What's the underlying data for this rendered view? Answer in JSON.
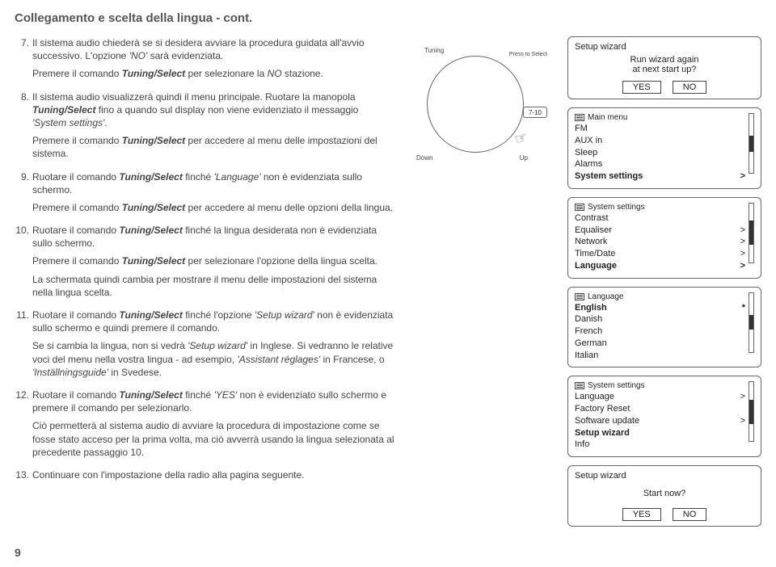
{
  "page": {
    "heading": "Collegamento e scelta della lingua - cont.",
    "number": "9"
  },
  "steps": [
    {
      "n": "7.",
      "paras": [
        "Il sistema audio chiederà se si desidera avviare la procedura guidata all'avvio successivo. L'opzione <em>'NO'</em> sarà evidenziata.",
        "Premere il comando <bi>Tuning/Select</bi> per selezionare la <em>NO</em> stazione."
      ]
    },
    {
      "n": "8.",
      "paras": [
        "Il sistema audio visualizzerà quindi il menu principale. Ruotare la manopola <bi>Tuning/Select</bi> fino a quando sul display non viene evidenziato il messaggio <em>'System settings'</em>.",
        "Premere il comando <bi>Tuning/Select</bi> per accedere al menu delle impostazioni del sistema."
      ]
    },
    {
      "n": "9.",
      "paras": [
        "Ruotare il comando <bi>Tuning/Select</bi> finché <em>'Language'</em> non è evidenziata sullo schermo.",
        "Premere il comando <bi>Tuning/Select</bi> per accedere al menu delle opzioni della lingua."
      ]
    },
    {
      "n": "10.",
      "paras": [
        "Ruotare il comando <bi>Tuning/Select</bi> finché la lingua desiderata non è evidenziata sullo schermo.",
        "Premere il comando <bi>Tuning/Select</bi> per selezionare l'opzione della lingua scelta.",
        "La schermata quindi cambia per mostrare il menu delle impostazioni del sistema nella lingua scelta."
      ]
    },
    {
      "n": "11.",
      "paras": [
        "Ruotare il comando <bi>Tuning/Select</bi> finché l'opzione <em>'Setup wizard'</em> non è evidenziata sullo schermo e quindi premere il comando.",
        "Se si cambia la lingua, non si vedrà <em>'Setup wizard'</em> in Inglese. Si vedranno le relative voci del menu nella vostra lingua - ad esempio, <em>'Assistant réglages'</em> in Francese, o <em>'Inställningsguide'</em> in Svedese."
      ]
    },
    {
      "n": "12.",
      "paras": [
        "Ruotare il comando <bi>Tuning/Select</bi> finché <em>'YES'</em> non è evidenziato sullo schermo e premere il comando per selezionarlo.",
        "Ciò permetterà al sistema audio di avviare la procedura di impostazione come se fosse stato acceso per la prima volta, ma ciò avverrà usando la lingua selezionata al precedente passaggio 10."
      ]
    },
    {
      "n": "13.",
      "paras": [
        "Continuare con l'impostazione della radio alla pagina seguente."
      ]
    }
  ],
  "dial": {
    "tuning": "Tuning",
    "press": "Press to\nSelect",
    "down": "Down",
    "up": "Up",
    "range": "7-10"
  },
  "screens": {
    "wizard1": {
      "title": "Setup wizard",
      "line1": "Run wizard again",
      "line2": "at next start up?",
      "yes": "YES",
      "no": "NO"
    },
    "mainmenu": {
      "header": "Main menu",
      "items": [
        "FM",
        "AUX in",
        "Sleep",
        "Alarms",
        "System settings"
      ],
      "selIndex": 4,
      "scrollThumbTop": 40,
      "scrollThumbHeight": 20
    },
    "syssettings1": {
      "header": "System settings",
      "items": [
        "Contrast",
        "Equaliser",
        "Network",
        "Time/Date",
        "Language"
      ],
      "chev": [
        false,
        true,
        true,
        true,
        true
      ],
      "selIndex": 4,
      "scrollThumbTop": 10,
      "scrollThumbHeight": 30
    },
    "language": {
      "header": "Language",
      "items": [
        "English",
        "Danish",
        "French",
        "German",
        "Italian"
      ],
      "star": [
        true,
        false,
        false,
        false,
        false
      ],
      "selIndex": 0,
      "scrollThumbTop": 0,
      "scrollThumbHeight": 18
    },
    "syssettings2": {
      "header": "System settings",
      "items": [
        "Language",
        "Factory Reset",
        "Software update",
        "Setup wizard",
        "Info"
      ],
      "chev": [
        true,
        false,
        true,
        false,
        false
      ],
      "selIndex": 3,
      "scrollThumbTop": 28,
      "scrollThumbHeight": 30
    },
    "wizard2": {
      "title": "Setup wizard",
      "line1": "Start now?",
      "yes": "YES",
      "no": "NO"
    }
  }
}
